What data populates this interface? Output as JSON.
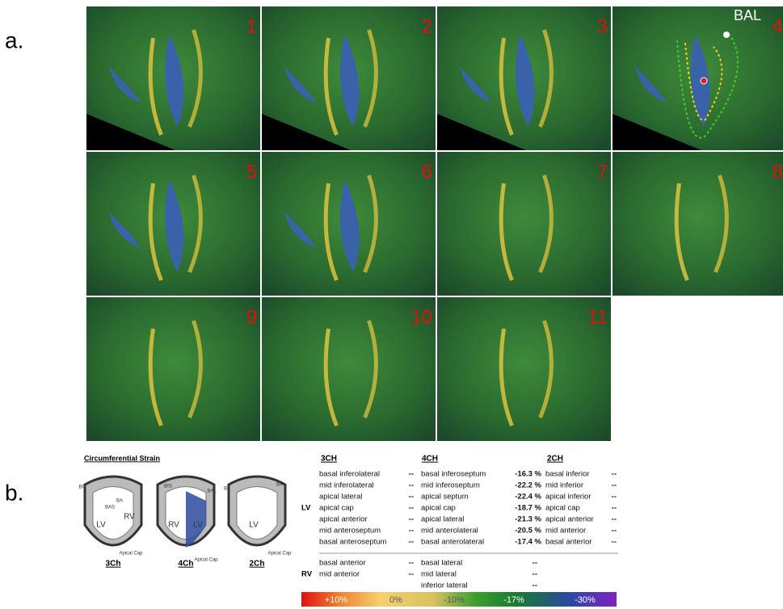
{
  "figure_labels": {
    "a": "a.",
    "b": "b."
  },
  "panels": [
    "1",
    "2",
    "3",
    "4",
    "5",
    "6",
    "7",
    "8",
    "9",
    "10",
    "11"
  ],
  "annotation": "BAL",
  "strain": {
    "title": "Circumferential Strain",
    "diagrams": [
      {
        "caption": "3Ch",
        "labels": [
          "LV",
          "RV",
          "BAS",
          "BIL",
          "BA",
          "Apical Cap"
        ]
      },
      {
        "caption": "4Ch",
        "labels": [
          "RV",
          "LV",
          "BIS",
          "BAL",
          "Apical Cap"
        ]
      },
      {
        "caption": "2Ch",
        "labels": [
          "LV",
          "BI",
          "BA",
          "Apical Cap"
        ]
      }
    ],
    "table": {
      "headers": [
        "3CH",
        "4CH",
        "2CH"
      ],
      "groups": [
        {
          "label": "LV",
          "columns": [
            [
              [
                "basal inferolateral",
                "--"
              ],
              [
                "mid inferolateral",
                "--"
              ],
              [
                "apical lateral",
                "--"
              ],
              [
                "apical cap",
                "--"
              ],
              [
                "apical anterior",
                "--"
              ],
              [
                "mid anteroseptum",
                "--"
              ],
              [
                "basal anteroseptum",
                "--"
              ]
            ],
            [
              [
                "basal inferoseptum",
                "-16.3 %"
              ],
              [
                "mid inferoseptum",
                "-22.2 %"
              ],
              [
                "apical septum",
                "-22.4 %"
              ],
              [
                "apical cap",
                "-18.7 %"
              ],
              [
                "apical lateral",
                "-21.3 %"
              ],
              [
                "mid anterolateral",
                "-20.5 %"
              ],
              [
                "basal anterolateral",
                "-17.4 %"
              ]
            ],
            [
              [
                "basal inferior",
                "--"
              ],
              [
                "mid inferior",
                "--"
              ],
              [
                "apical inferior",
                "--"
              ],
              [
                "apical cap",
                "--"
              ],
              [
                "apical anterior",
                "--"
              ],
              [
                "mid anterior",
                "--"
              ],
              [
                "basal anterior",
                "--"
              ]
            ]
          ]
        },
        {
          "label": "RV",
          "columns": [
            [
              [
                "basal anterior",
                "--"
              ],
              [
                "mid anterior",
                "--"
              ]
            ],
            [
              [
                "basal lateral",
                "--"
              ],
              [
                "mid lateral",
                "--"
              ],
              [
                "inferior lateral",
                "--"
              ]
            ],
            []
          ]
        }
      ]
    },
    "scale": [
      "+10%",
      "0%",
      "-10%",
      "-17%",
      "-30%"
    ]
  }
}
